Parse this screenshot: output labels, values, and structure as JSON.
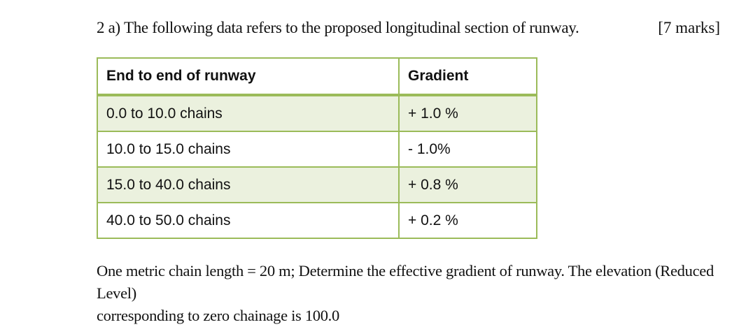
{
  "question": {
    "text": "2 a) The following data refers to the proposed longitudinal section of runway.",
    "marks": "[7 marks]"
  },
  "table": {
    "headers": [
      "End to end of runway",
      "Gradient"
    ],
    "rows": [
      {
        "range": "0.0 to 10.0 chains",
        "gradient": "+ 1.0 %"
      },
      {
        "range": "10.0 to 15.0 chains",
        "gradient": "- 1.0%"
      },
      {
        "range": "15.0 to 40.0 chains",
        "gradient": "+ 0.8 %"
      },
      {
        "range": "40.0 to 50.0 chains",
        "gradient": "+ 0.2 %"
      }
    ],
    "border_color": "#9bbb59",
    "shade_color": "#ebf1de"
  },
  "footer": {
    "line1": "One metric chain length = 20 m; Determine the effective gradient of runway. The elevation (Reduced Level)",
    "line2": "corresponding to zero chainage is 100.0"
  }
}
